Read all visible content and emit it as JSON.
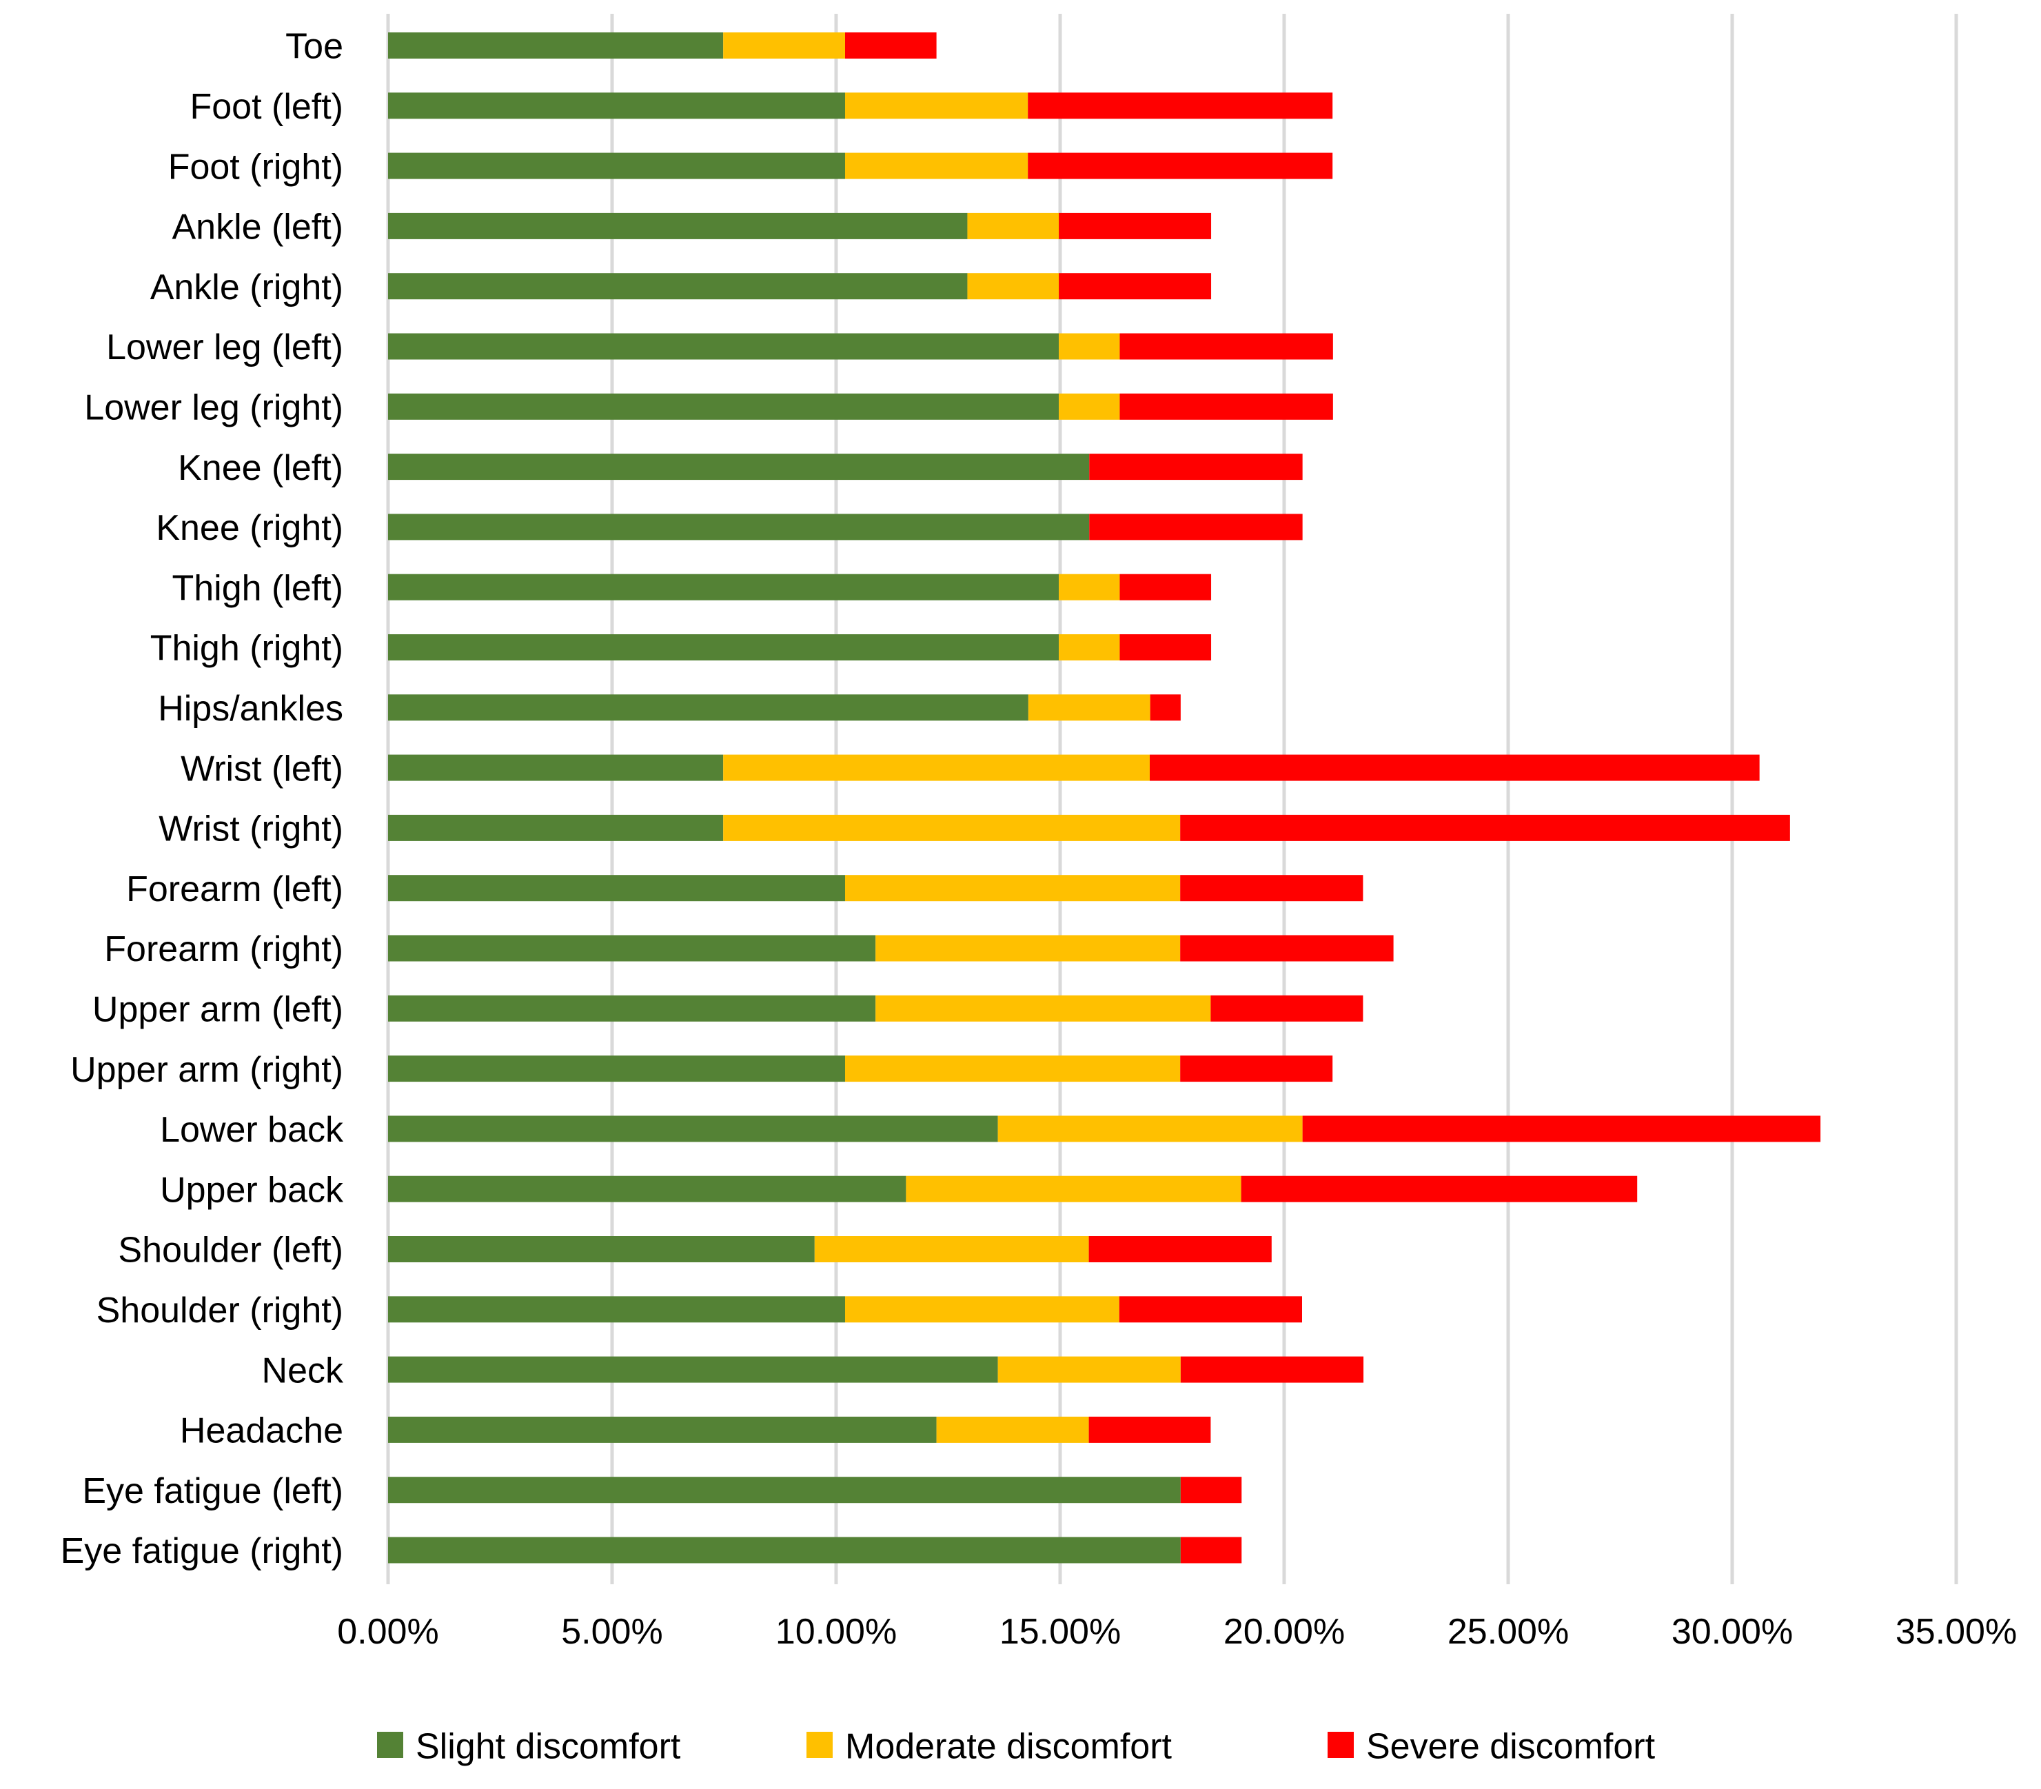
{
  "chart_data": {
    "type": "bar",
    "orientation": "horizontal",
    "stacked": true,
    "title": "",
    "xlabel": "",
    "ylabel": "",
    "xlim": [
      0,
      35
    ],
    "x_ticks": [
      0,
      5,
      10,
      15,
      20,
      25,
      30,
      35
    ],
    "x_tick_labels": [
      "0.00%",
      "5.00%",
      "10.00%",
      "15.00%",
      "20.00%",
      "25.00%",
      "30.00%",
      "35.00%"
    ],
    "grid": "vertical",
    "legend_position": "bottom",
    "categories": [
      "Toe",
      "Foot (left)",
      "Foot (right)",
      "Ankle (left)",
      "Ankle (right)",
      "Lower leg (left)",
      "Lower leg (right)",
      "Knee (left)",
      "Knee (right)",
      "Thigh (left)",
      "Thigh (right)",
      "Hips/ankles",
      "Wrist (left)",
      "Wrist (right)",
      "Forearm (left)",
      "Forearm (right)",
      "Upper arm (left)",
      "Upper arm (right)",
      "Lower back",
      "Upper back",
      "Shoulder (left)",
      "Shoulder (right)",
      "Neck",
      "Headache",
      "Eye fatigue (left)",
      "Eye fatigue (right)"
    ],
    "series": [
      {
        "name": "Slight discomfort",
        "color": "#548235",
        "values": [
          7.48,
          10.2,
          10.2,
          12.93,
          12.93,
          14.97,
          14.97,
          15.65,
          15.65,
          14.97,
          14.97,
          14.29,
          7.48,
          7.48,
          10.2,
          10.88,
          10.88,
          10.2,
          13.61,
          11.56,
          9.52,
          10.2,
          13.61,
          12.24,
          17.69,
          17.69
        ]
      },
      {
        "name": "Moderate discomfort",
        "color": "#FFC000",
        "values": [
          2.72,
          4.08,
          4.08,
          2.04,
          2.04,
          1.36,
          1.36,
          0,
          0,
          1.36,
          1.36,
          2.72,
          9.52,
          10.2,
          7.48,
          6.8,
          7.48,
          7.48,
          6.8,
          7.48,
          6.12,
          6.12,
          4.08,
          3.4,
          0,
          0
        ]
      },
      {
        "name": "Severe discomfort",
        "color": "#FF0000",
        "values": [
          2.04,
          6.8,
          6.8,
          3.4,
          3.4,
          4.76,
          4.76,
          4.76,
          4.76,
          2.04,
          2.04,
          0.68,
          13.61,
          13.61,
          4.08,
          4.76,
          3.4,
          3.4,
          11.56,
          8.84,
          4.08,
          4.08,
          4.08,
          2.72,
          1.36,
          1.36
        ]
      }
    ]
  }
}
